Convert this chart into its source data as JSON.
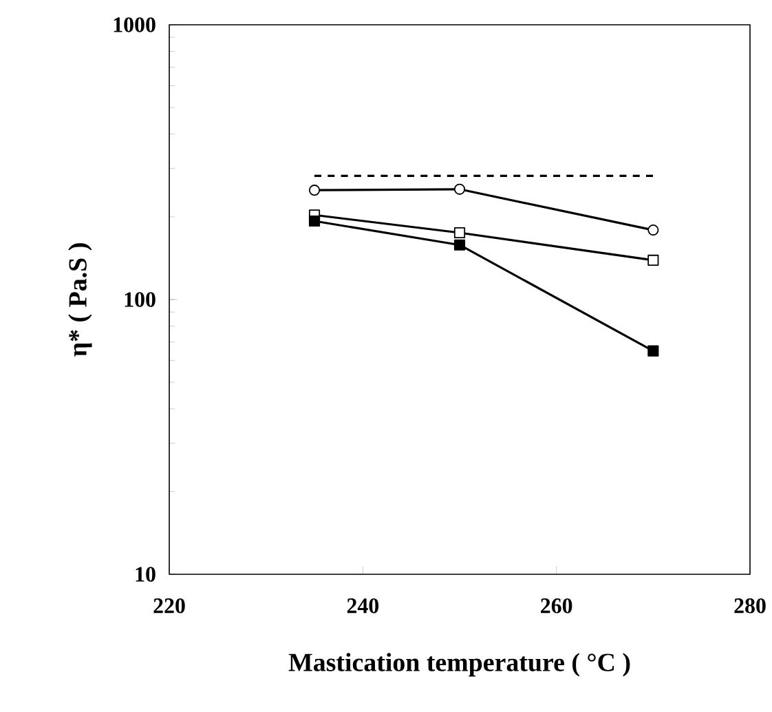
{
  "chart_data": {
    "type": "line",
    "xlabel": "Mastication temperature ( °C )",
    "ylabel": "η* ( Pa.S )",
    "log": "y",
    "xlim": [
      220,
      280
    ],
    "ylim": [
      10,
      1000
    ],
    "xticks": [
      220,
      240,
      260,
      280
    ],
    "yticks": [
      10,
      100,
      1000
    ],
    "grid": false,
    "series": [
      {
        "x": [
          235,
          270
        ],
        "values": [
          282,
          282
        ],
        "color": "#000000",
        "line_style": "dashed",
        "marker": "none"
      },
      {
        "x": [
          235,
          250,
          270
        ],
        "values": [
          250,
          252,
          179
        ],
        "color": "#000000",
        "line_style": "solid",
        "marker": "circle"
      },
      {
        "x": [
          235,
          250,
          270
        ],
        "values": [
          203,
          175,
          139
        ],
        "color": "#000000",
        "line_style": "solid",
        "marker": "square"
      },
      {
        "x": [
          235,
          250,
          270
        ],
        "values": [
          193,
          158,
          65
        ],
        "color": "#000000",
        "line_style": "solid",
        "marker": "square"
      }
    ]
  }
}
